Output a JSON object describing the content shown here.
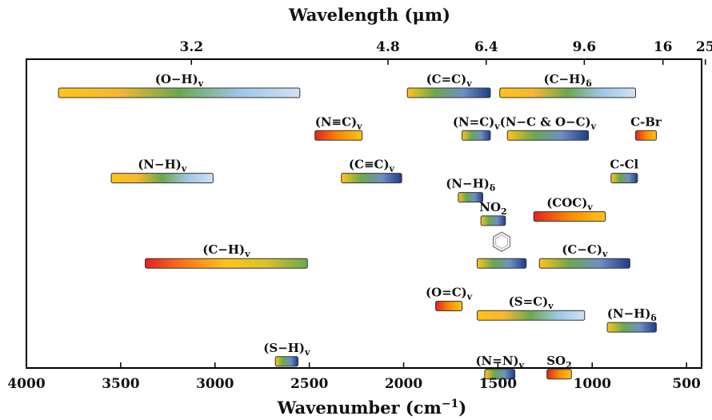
{
  "chart_data": {
    "type": "bar",
    "title": "",
    "xlabel": "Wavenumber (cm",
    "xlabel_sup": "−1",
    "xlabel_tail": ")",
    "top_label": "Wavelength (μm)",
    "xlim": [
      4000,
      420
    ],
    "x_ticks": [
      4000,
      3500,
      3000,
      2500,
      2000,
      1500,
      1000,
      500
    ],
    "x_tick_labels": [
      "4000",
      "3500",
      "3000",
      "2500",
      "2000",
      "1500",
      "1000",
      "500"
    ],
    "top_ticks": [
      3125,
      2083,
      1562,
      1042,
      625,
      400
    ],
    "top_tick_labels": [
      "3.2",
      "4.8",
      "6.4",
      "9.6",
      "16",
      "25"
    ],
    "gradients": {
      "warm": [
        "#ffc41a",
        "#f7b731",
        "#6aa84f",
        "#9fc5e8",
        "#cfe2f3"
      ],
      "cool": [
        "#ffc41a",
        "#6aa84f",
        "#6f8fc4",
        "#1f3c88"
      ],
      "hot": [
        "#e0231f",
        "#ff7a1a",
        "#ffc41a",
        "#d9c12a",
        "#6aa84f"
      ],
      "red": [
        "#e0231f",
        "#ff8a00",
        "#ffc41a"
      ]
    },
    "bands": [
      {
        "label": "(O−H)",
        "sub": "v",
        "from": 3830,
        "to": 2550,
        "row": 1,
        "grad": "warm"
      },
      {
        "label": "(C=C)",
        "sub": "v",
        "from": 1980,
        "to": 1540,
        "row": 1,
        "grad": "cool"
      },
      {
        "label": "(C−H)",
        "sub": "δ",
        "from": 1490,
        "to": 770,
        "row": 1,
        "grad": "warm"
      },
      {
        "label": "(N≡C)",
        "sub": "v",
        "from": 2470,
        "to": 2220,
        "row": 2,
        "grad": "red"
      },
      {
        "label": "(N=C)",
        "sub": "v",
        "from": 1690,
        "to": 1540,
        "row": 2,
        "grad": "cool"
      },
      {
        "label": "(N−C & O−C)",
        "sub": "v",
        "from": 1450,
        "to": 1020,
        "row": 2,
        "grad": "cool"
      },
      {
        "label": "C-Br",
        "sub": "",
        "from": 770,
        "to": 660,
        "row": 2,
        "grad": "red"
      },
      {
        "label": "(N−H)",
        "sub": "v",
        "from": 3550,
        "to": 3010,
        "row": 3,
        "grad": "warm"
      },
      {
        "label": "(C≡C)",
        "sub": "v",
        "from": 2330,
        "to": 2010,
        "row": 3,
        "grad": "cool"
      },
      {
        "label": "(N−H)",
        "sub": "δ",
        "from": 1710,
        "to": 1580,
        "row": 3.45,
        "grad": "cool"
      },
      {
        "label": "C-Cl",
        "sub": "",
        "from": 900,
        "to": 760,
        "row": 3,
        "grad": "cool"
      },
      {
        "label": "NO",
        "sub": "2",
        "from": 1590,
        "to": 1460,
        "row": 4,
        "grad": "cool"
      },
      {
        "label": "(COC)",
        "sub": "v",
        "from": 1310,
        "to": 930,
        "row": 3.9,
        "grad": "red"
      },
      {
        "label": "(C−H)",
        "sub": "v",
        "from": 3370,
        "to": 2510,
        "row": 5,
        "grad": "hot"
      },
      {
        "label": "",
        "sub": "",
        "from": 1610,
        "to": 1350,
        "row": 5,
        "grad": "cool",
        "benzene": true
      },
      {
        "label": "(C−C)",
        "sub": "v",
        "from": 1280,
        "to": 800,
        "row": 5,
        "grad": "cool"
      },
      {
        "label": "(O=C)",
        "sub": "v",
        "from": 1830,
        "to": 1690,
        "row": 6,
        "grad": "red"
      },
      {
        "label": "(S=C)",
        "sub": "v",
        "from": 1610,
        "to": 1040,
        "row": 6.22,
        "grad": "warm"
      },
      {
        "label": "(N−H)",
        "sub": "δ",
        "from": 920,
        "to": 660,
        "row": 6.5,
        "grad": "cool"
      },
      {
        "label": "(S−H)",
        "sub": "v",
        "from": 2680,
        "to": 2560,
        "row": 7.3,
        "grad": "cool"
      },
      {
        "label": "(N=N)",
        "sub": "v",
        "from": 1570,
        "to": 1410,
        "row": 7.6,
        "grad": "cool"
      },
      {
        "label": "SO",
        "sub": "2",
        "from": 1240,
        "to": 1110,
        "row": 7.6,
        "grad": "red"
      }
    ]
  }
}
